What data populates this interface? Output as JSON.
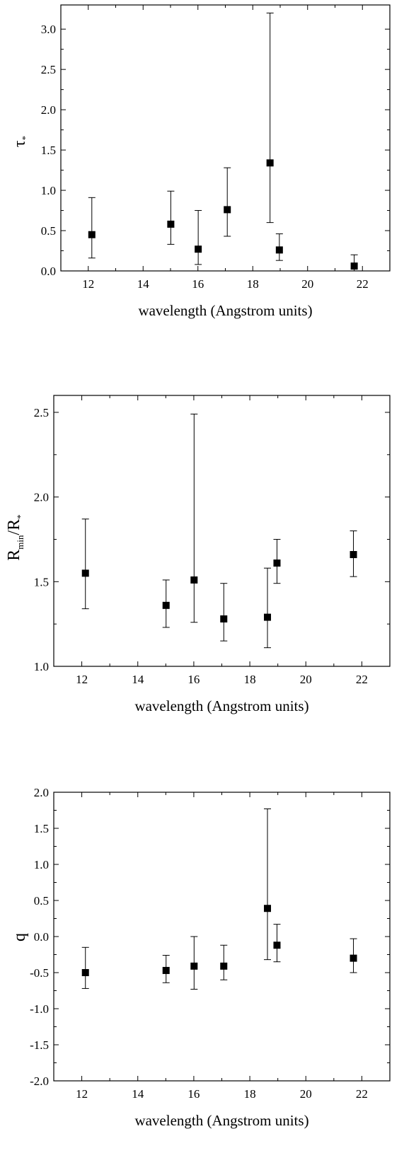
{
  "chart_data": [
    {
      "type": "scatter",
      "ylabel": "τ",
      "ylabel_sub": "*",
      "xlabel": "wavelength (Angstrom units)",
      "xlim": [
        11,
        23
      ],
      "ylim": [
        0.0,
        3.3
      ],
      "xticks": [
        "12",
        "14",
        "16",
        "18",
        "20",
        "22"
      ],
      "yticks": [
        "0.0",
        "0.5",
        "1.0",
        "1.5",
        "2.0",
        "2.5",
        "3.0"
      ],
      "points": [
        {
          "x": 12.13,
          "y": 0.45,
          "ylow": 0.16,
          "yhigh": 0.91
        },
        {
          "x": 15.01,
          "y": 0.58,
          "ylow": 0.33,
          "yhigh": 0.99
        },
        {
          "x": 16.01,
          "y": 0.27,
          "ylow": 0.08,
          "yhigh": 0.75
        },
        {
          "x": 17.07,
          "y": 0.76,
          "ylow": 0.43,
          "yhigh": 1.28
        },
        {
          "x": 18.63,
          "y": 1.34,
          "ylow": 0.6,
          "yhigh": 3.2
        },
        {
          "x": 18.97,
          "y": 0.26,
          "ylow": 0.13,
          "yhigh": 0.46
        },
        {
          "x": 21.7,
          "y": 0.06,
          "ylow": 0.0,
          "yhigh": 0.2
        }
      ]
    },
    {
      "type": "scatter",
      "ylabel": "R",
      "ylabel_sub1": "min",
      "ylabel_mid": "/R",
      "ylabel_sub2": "*",
      "xlabel": "wavelength (Angstrom units)",
      "xlim": [
        11,
        23
      ],
      "ylim": [
        1.0,
        2.6
      ],
      "xticks": [
        "12",
        "14",
        "16",
        "18",
        "20",
        "22"
      ],
      "yticks": [
        "1.0",
        "1.5",
        "2.0",
        "2.5"
      ],
      "points": [
        {
          "x": 12.13,
          "y": 1.55,
          "ylow": 1.34,
          "yhigh": 1.87
        },
        {
          "x": 15.01,
          "y": 1.36,
          "ylow": 1.23,
          "yhigh": 1.51
        },
        {
          "x": 16.01,
          "y": 1.51,
          "ylow": 1.26,
          "yhigh": 2.49
        },
        {
          "x": 17.07,
          "y": 1.28,
          "ylow": 1.15,
          "yhigh": 1.49
        },
        {
          "x": 18.63,
          "y": 1.29,
          "ylow": 1.11,
          "yhigh": 1.58
        },
        {
          "x": 18.97,
          "y": 1.61,
          "ylow": 1.49,
          "yhigh": 1.75
        },
        {
          "x": 21.7,
          "y": 1.66,
          "ylow": 1.53,
          "yhigh": 1.8
        }
      ]
    },
    {
      "type": "scatter",
      "ylabel": "q",
      "xlabel": "wavelength (Angstrom units)",
      "xlim": [
        11,
        23
      ],
      "ylim": [
        -2.0,
        2.0
      ],
      "xticks": [
        "12",
        "14",
        "16",
        "18",
        "20",
        "22"
      ],
      "yticks": [
        "-2.0",
        "-1.5",
        "-1.0",
        "-0.5",
        "0.0",
        "0.5",
        "1.0",
        "1.5",
        "2.0"
      ],
      "points": [
        {
          "x": 12.13,
          "y": -0.5,
          "ylow": -0.72,
          "yhigh": -0.15
        },
        {
          "x": 15.01,
          "y": -0.47,
          "ylow": -0.64,
          "yhigh": -0.26
        },
        {
          "x": 16.01,
          "y": -0.41,
          "ylow": -0.73,
          "yhigh": 0.0
        },
        {
          "x": 17.07,
          "y": -0.41,
          "ylow": -0.6,
          "yhigh": -0.12
        },
        {
          "x": 18.63,
          "y": 0.39,
          "ylow": -0.32,
          "yhigh": 1.77
        },
        {
          "x": 18.97,
          "y": -0.12,
          "ylow": -0.35,
          "yhigh": 0.17
        },
        {
          "x": 21.7,
          "y": -0.3,
          "ylow": -0.5,
          "yhigh": -0.03
        }
      ]
    }
  ]
}
